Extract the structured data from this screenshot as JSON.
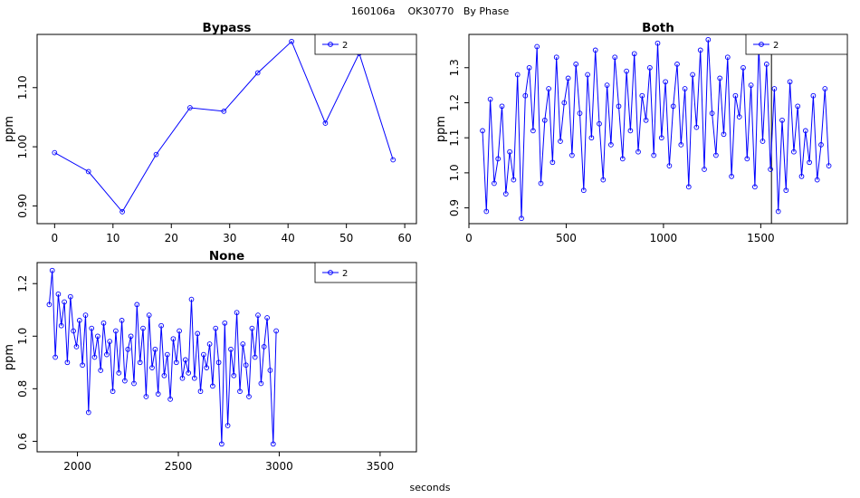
{
  "suptitle": "160106a    OK30770   By Phase",
  "xlabel": "seconds",
  "series_color": "#0000ff",
  "chart_data": [
    {
      "type": "line",
      "title": "Bypass",
      "ylabel": "ppm",
      "legend": {
        "placement": "top-right",
        "entries": [
          "2"
        ]
      },
      "xlim": [
        -3,
        62
      ],
      "ylim": [
        0.87,
        1.19
      ],
      "xticks": [
        0,
        10,
        20,
        30,
        40,
        50,
        60
      ],
      "yticks": [
        0.9,
        1.0,
        1.1
      ],
      "ytick_labels": [
        "0.90",
        "1.00",
        "1.10"
      ],
      "series": [
        {
          "name": "2",
          "x": [
            0,
            5.8,
            11.6,
            17.4,
            23.2,
            29,
            34.8,
            40.6,
            46.4,
            52.2,
            58
          ],
          "y": [
            0.99,
            0.958,
            0.89,
            0.987,
            1.066,
            1.06,
            1.125,
            1.178,
            1.04,
            1.158,
            0.978
          ]
        }
      ]
    },
    {
      "type": "line",
      "title": "Both",
      "ylabel": "ppm",
      "legend": {
        "placement": "top-right",
        "entries": [
          "2"
        ]
      },
      "xlim": [
        0,
        1945
      ],
      "ylim": [
        0.855,
        1.395
      ],
      "xticks": [
        0,
        500,
        1000,
        1500
      ],
      "yticks": [
        0.9,
        1.0,
        1.1,
        1.2,
        1.3
      ],
      "ytick_labels": [
        "0.9",
        "1.0",
        "1.1",
        "1.2",
        "1.3"
      ],
      "vline": 1555,
      "series": [
        {
          "name": "2",
          "x": [
            70,
            90,
            110,
            130,
            150,
            170,
            190,
            210,
            230,
            250,
            270,
            290,
            310,
            330,
            350,
            370,
            390,
            410,
            430,
            450,
            470,
            490,
            510,
            530,
            550,
            570,
            590,
            610,
            630,
            650,
            670,
            690,
            710,
            730,
            750,
            770,
            790,
            810,
            830,
            850,
            870,
            890,
            910,
            930,
            950,
            970,
            990,
            1010,
            1030,
            1050,
            1070,
            1090,
            1110,
            1130,
            1150,
            1170,
            1190,
            1210,
            1230,
            1250,
            1270,
            1290,
            1310,
            1330,
            1350,
            1370,
            1390,
            1410,
            1430,
            1450,
            1470,
            1490,
            1510,
            1530,
            1550,
            1570,
            1590,
            1610,
            1630,
            1650,
            1670,
            1690,
            1710,
            1730,
            1750,
            1770,
            1790,
            1810,
            1830,
            1850
          ],
          "y": [
            1.12,
            0.89,
            1.21,
            0.97,
            1.04,
            1.19,
            0.94,
            1.06,
            0.98,
            1.28,
            0.87,
            1.22,
            1.3,
            1.12,
            1.36,
            0.97,
            1.15,
            1.24,
            1.03,
            1.33,
            1.09,
            1.2,
            1.27,
            1.05,
            1.31,
            1.17,
            0.95,
            1.28,
            1.1,
            1.35,
            1.14,
            0.98,
            1.25,
            1.08,
            1.33,
            1.19,
            1.04,
            1.29,
            1.12,
            1.34,
            1.06,
            1.22,
            1.15,
            1.3,
            1.05,
            1.37,
            1.1,
            1.26,
            1.02,
            1.19,
            1.31,
            1.08,
            1.24,
            0.96,
            1.28,
            1.13,
            1.35,
            1.01,
            1.38,
            1.17,
            1.05,
            1.27,
            1.11,
            1.33,
            0.99,
            1.22,
            1.16,
            1.3,
            1.04,
            1.25,
            0.96,
            1.36,
            1.09,
            1.31,
            1.01,
            1.24,
            0.89,
            1.15,
            0.95,
            1.26,
            1.06,
            1.19,
            0.99,
            1.12,
            1.03,
            1.22,
            0.98,
            1.08,
            1.24,
            1.02
          ]
        }
      ]
    },
    {
      "type": "line",
      "title": "None",
      "ylabel": "ppm",
      "legend": {
        "placement": "top-right",
        "entries": [
          "2"
        ]
      },
      "xlim": [
        1800,
        3680
      ],
      "ylim": [
        0.56,
        1.28
      ],
      "xticks": [
        2000,
        2500,
        3000,
        3500
      ],
      "yticks": [
        0.6,
        0.8,
        1.0,
        1.2
      ],
      "ytick_labels": [
        "0.6",
        "0.8",
        "1.0",
        "1.2"
      ],
      "series": [
        {
          "name": "2",
          "x": [
            1860,
            1875,
            1890,
            1905,
            1920,
            1935,
            1950,
            1965,
            1980,
            1995,
            2010,
            2025,
            2040,
            2055,
            2070,
            2085,
            2100,
            2115,
            2130,
            2145,
            2160,
            2175,
            2190,
            2205,
            2220,
            2235,
            2250,
            2265,
            2280,
            2295,
            2310,
            2325,
            2340,
            2355,
            2370,
            2385,
            2400,
            2415,
            2430,
            2445,
            2460,
            2475,
            2490,
            2505,
            2520,
            2535,
            2550,
            2565,
            2580,
            2595,
            2610,
            2625,
            2640,
            2655,
            2670,
            2685,
            2700,
            2715,
            2730,
            2745,
            2760,
            2775,
            2790,
            2805,
            2820,
            2835,
            2850,
            2865,
            2880,
            2895,
            2910,
            2925,
            2940,
            2955,
            2970,
            2985
          ],
          "y": [
            1.12,
            1.25,
            0.92,
            1.16,
            1.04,
            1.13,
            0.9,
            1.15,
            1.02,
            0.96,
            1.06,
            0.89,
            1.08,
            0.71,
            1.03,
            0.92,
            1.0,
            0.87,
            1.05,
            0.93,
            0.98,
            0.79,
            1.02,
            0.86,
            1.06,
            0.83,
            0.95,
            1.0,
            0.82,
            1.12,
            0.9,
            1.03,
            0.77,
            1.08,
            0.88,
            0.95,
            0.78,
            1.04,
            0.85,
            0.93,
            0.76,
            0.99,
            0.9,
            1.02,
            0.84,
            0.91,
            0.86,
            1.14,
            0.84,
            1.01,
            0.79,
            0.93,
            0.88,
            0.97,
            0.81,
            1.03,
            0.9,
            0.59,
            1.05,
            0.66,
            0.95,
            0.85,
            1.09,
            0.79,
            0.97,
            0.89,
            0.77,
            1.03,
            0.92,
            1.08,
            0.82,
            0.96,
            1.07,
            0.87,
            0.59,
            1.02
          ]
        }
      ]
    }
  ]
}
